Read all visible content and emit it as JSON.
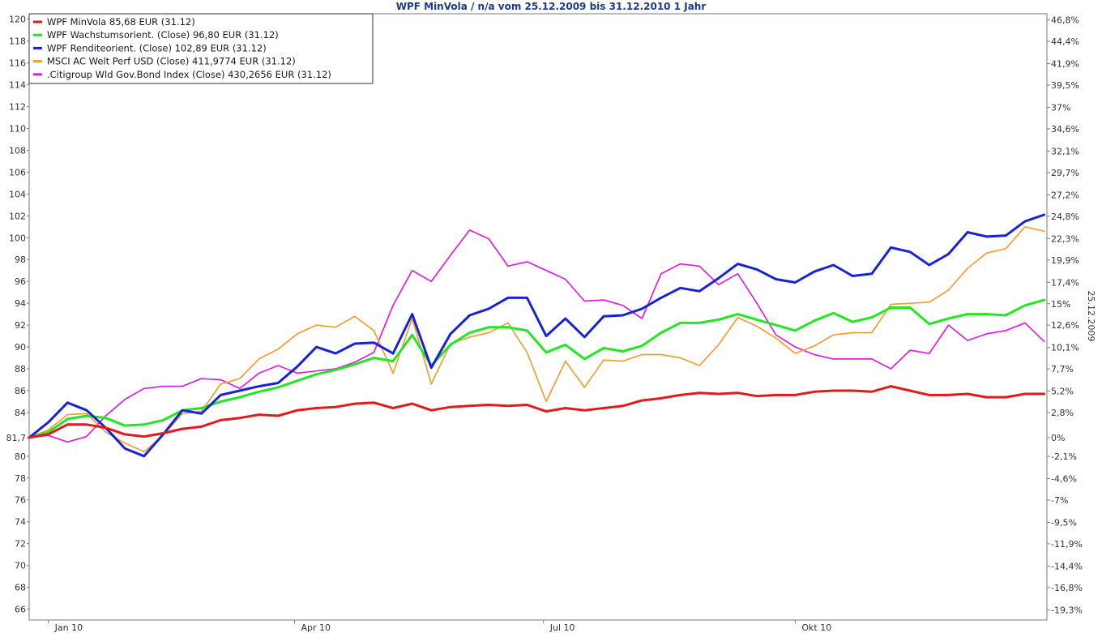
{
  "title": "WPF MinVola / n/a vom 25.12.2009 bis 31.12.2010 1 Jahr",
  "side_date": "25.12.2009",
  "chart_data": {
    "type": "line",
    "title": "WPF MinVola / n/a vom 25.12.2009 bis 31.12.2010 1 Jahr",
    "x": [
      "2009-12-25",
      "2010-01-01",
      "2010-01-08",
      "2010-01-15",
      "2010-01-22",
      "2010-01-29",
      "2010-02-05",
      "2010-02-12",
      "2010-02-19",
      "2010-02-26",
      "2010-03-05",
      "2010-03-12",
      "2010-03-19",
      "2010-03-26",
      "2010-04-02",
      "2010-04-09",
      "2010-04-16",
      "2010-04-23",
      "2010-04-30",
      "2010-05-07",
      "2010-05-14",
      "2010-05-21",
      "2010-05-28",
      "2010-06-04",
      "2010-06-11",
      "2010-06-18",
      "2010-06-25",
      "2010-07-02",
      "2010-07-09",
      "2010-07-16",
      "2010-07-23",
      "2010-07-30",
      "2010-08-06",
      "2010-08-13",
      "2010-08-20",
      "2010-08-27",
      "2010-09-03",
      "2010-09-10",
      "2010-09-17",
      "2010-09-24",
      "2010-10-01",
      "2010-10-08",
      "2010-10-15",
      "2010-10-22",
      "2010-10-29",
      "2010-11-05",
      "2010-11-12",
      "2010-11-19",
      "2010-11-26",
      "2010-12-03",
      "2010-12-10",
      "2010-12-17",
      "2010-12-24",
      "2010-12-31"
    ],
    "xticks": [
      {
        "date": "2010-01-01",
        "label": "Jan 10"
      },
      {
        "date": "2010-04-01",
        "label": "Apr 10"
      },
      {
        "date": "2010-07-01",
        "label": "Jul 10"
      },
      {
        "date": "2010-10-01",
        "label": "Okt 10"
      }
    ],
    "ylim": [
      65,
      120.5
    ],
    "yticks_left": [
      "66",
      "68",
      "70",
      "72",
      "74",
      "76",
      "78",
      "80",
      "81,7",
      "84",
      "86",
      "88",
      "90",
      "92",
      "94",
      "96",
      "98",
      "100",
      "102",
      "104",
      "106",
      "108",
      "110",
      "112",
      "114",
      "116",
      "118",
      "120"
    ],
    "yticks_left_values": [
      66,
      68,
      70,
      72,
      74,
      76,
      78,
      80,
      81.7,
      84,
      86,
      88,
      90,
      92,
      94,
      96,
      98,
      100,
      102,
      104,
      106,
      108,
      110,
      112,
      114,
      116,
      118,
      120
    ],
    "yticks_right": [
      {
        "label": "46,8%",
        "value": 46.8
      },
      {
        "label": "44,4%",
        "value": 44.4
      },
      {
        "label": "41,9%",
        "value": 41.9
      },
      {
        "label": "39,5%",
        "value": 39.5
      },
      {
        "label": "37%",
        "value": 37
      },
      {
        "label": "34,6%",
        "value": 34.6
      },
      {
        "label": "32,1%",
        "value": 32.1
      },
      {
        "label": "29,7%",
        "value": 29.7
      },
      {
        "label": "27,2%",
        "value": 27.2
      },
      {
        "label": "24,8%",
        "value": 24.8
      },
      {
        "label": "22,3%",
        "value": 22.3
      },
      {
        "label": "19,9%",
        "value": 19.9
      },
      {
        "label": "17,4%",
        "value": 17.4
      },
      {
        "label": "15%",
        "value": 15
      },
      {
        "label": "12,6%",
        "value": 12.6
      },
      {
        "label": "10,1%",
        "value": 10.1
      },
      {
        "label": "7,7%",
        "value": 7.7
      },
      {
        "label": "5,2%",
        "value": 5.2
      },
      {
        "label": "2,8%",
        "value": 2.8
      },
      {
        "label": "0%",
        "value": 0
      },
      {
        "label": "-2,1%",
        "value": -2.1
      },
      {
        "label": "-4,6%",
        "value": -4.6
      },
      {
        "label": "-7%",
        "value": -7
      },
      {
        "label": "-9,5%",
        "value": -9.5
      },
      {
        "label": "-11,9%",
        "value": -11.9
      },
      {
        "label": "-14,4%",
        "value": -14.4
      },
      {
        "label": "-16,8%",
        "value": -16.8
      },
      {
        "label": "-19,3%",
        "value": -19.3
      }
    ],
    "base_value": 81.7,
    "grid": true,
    "legend_position": "top-left",
    "series": [
      {
        "name": "WPF MinVola 85,68 EUR (31.12)",
        "color": "#e31a1c",
        "width": 3,
        "values": [
          81.7,
          82.0,
          82.9,
          82.9,
          82.6,
          82.0,
          81.8,
          82.1,
          82.5,
          82.7,
          83.3,
          83.5,
          83.8,
          83.7,
          84.2,
          84.4,
          84.5,
          84.8,
          84.9,
          84.4,
          84.8,
          84.2,
          84.5,
          84.6,
          84.7,
          84.6,
          84.7,
          84.1,
          84.4,
          84.2,
          84.4,
          84.6,
          85.1,
          85.3,
          85.6,
          85.8,
          85.7,
          85.8,
          85.5,
          85.6,
          85.6,
          85.9,
          86.0,
          86.0,
          85.9,
          86.4,
          86.0,
          85.6,
          85.6,
          85.7,
          85.4,
          85.4,
          85.7,
          85.7
        ]
      },
      {
        "name": "WPF Wachstumsorient. (Close) 96,80 EUR (31.12)",
        "color": "#22e822",
        "width": 3,
        "values": [
          81.7,
          82.2,
          83.4,
          83.7,
          83.5,
          82.8,
          82.9,
          83.3,
          84.2,
          84.4,
          85.0,
          85.4,
          85.9,
          86.3,
          86.9,
          87.5,
          87.9,
          88.4,
          89.0,
          88.7,
          91.1,
          88.3,
          90.2,
          91.3,
          91.8,
          91.8,
          91.5,
          89.5,
          90.2,
          88.9,
          89.9,
          89.6,
          90.1,
          91.3,
          92.2,
          92.2,
          92.5,
          93.0,
          92.5,
          92.0,
          91.5,
          92.4,
          93.1,
          92.3,
          92.7,
          93.6,
          93.6,
          92.1,
          92.6,
          93.0,
          93.0,
          92.9,
          93.8,
          94.3
        ]
      },
      {
        "name": "WPF Renditeorient. (Close) 102,89 EUR (31.12)",
        "color": "#1a22d6",
        "width": 3,
        "values": [
          81.7,
          83.1,
          84.9,
          84.2,
          82.6,
          80.7,
          80.0,
          82.0,
          84.2,
          83.9,
          85.6,
          86.0,
          86.4,
          86.7,
          88.2,
          90.0,
          89.4,
          90.3,
          90.4,
          89.4,
          93.0,
          88.1,
          91.2,
          92.9,
          93.5,
          94.5,
          94.5,
          91.0,
          92.6,
          90.9,
          92.8,
          92.9,
          93.5,
          94.5,
          95.4,
          95.1,
          96.3,
          97.6,
          97.1,
          96.2,
          95.9,
          96.9,
          97.5,
          96.5,
          96.7,
          99.1,
          98.7,
          97.5,
          98.5,
          100.5,
          100.1,
          100.2,
          101.5,
          102.1
        ]
      },
      {
        "name": "MSCI AC Welt Perf USD (Close) 411,9774 EUR (31.12)",
        "color": "#f0a030",
        "width": 1.7,
        "values": [
          81.7,
          82.4,
          83.8,
          83.9,
          82.2,
          81.2,
          80.4,
          81.9,
          83.9,
          84.1,
          86.6,
          87.1,
          88.9,
          89.8,
          91.2,
          92.0,
          91.8,
          92.8,
          91.5,
          87.6,
          92.6,
          86.6,
          90.3,
          90.9,
          91.3,
          92.2,
          89.5,
          85.0,
          88.7,
          86.3,
          88.8,
          88.7,
          89.3,
          89.3,
          89.0,
          88.3,
          90.2,
          92.7,
          91.9,
          90.8,
          89.4,
          90.1,
          91.1,
          91.3,
          91.3,
          93.9,
          94.0,
          94.1,
          95.2,
          97.2,
          98.6,
          99.0,
          101.0,
          100.6
        ]
      },
      {
        "name": ".Citigroup Wld Gov.Bond Index (Close) 430,2656 EUR (31.12)",
        "color": "#e01fe0",
        "width": 1.7,
        "values": [
          81.7,
          81.9,
          81.3,
          81.8,
          83.7,
          85.2,
          86.2,
          86.4,
          86.4,
          87.1,
          87.0,
          86.2,
          87.6,
          88.3,
          87.6,
          87.8,
          88.0,
          88.6,
          89.5,
          93.8,
          97.0,
          96.0,
          98.4,
          100.7,
          99.9,
          97.4,
          97.8,
          97.0,
          96.2,
          94.2,
          94.3,
          93.8,
          92.6,
          96.7,
          97.6,
          97.4,
          95.7,
          96.7,
          94.0,
          91.1,
          90.0,
          89.3,
          88.9,
          88.9,
          88.9,
          88.0,
          89.7,
          89.4,
          92.0,
          90.6,
          91.2,
          91.5,
          92.2,
          90.5
        ]
      }
    ]
  }
}
